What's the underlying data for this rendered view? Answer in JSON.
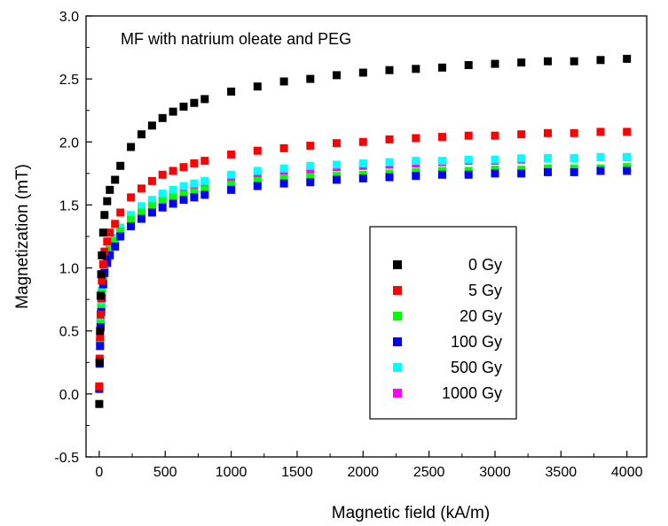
{
  "chart_data": {
    "type": "scatter",
    "title": "MF with natrium oleate and PEG",
    "xlabel": "Magnetic field (kA/m)",
    "ylabel": "Magnetization (mT)",
    "xlim": [
      -100,
      4150
    ],
    "ylim": [
      -0.5,
      3.0
    ],
    "x_ticks": [
      0,
      500,
      1000,
      1500,
      2000,
      2500,
      3000,
      3500,
      4000
    ],
    "y_ticks": [
      -0.5,
      0.0,
      0.5,
      1.0,
      1.5,
      2.0,
      2.5,
      3.0
    ],
    "x_tick_labels": [
      "0",
      "500",
      "1000",
      "1500",
      "2000",
      "2500",
      "3000",
      "3500",
      "4000"
    ],
    "y_tick_labels": [
      "-0.5",
      "0.0",
      "0.5",
      "1.0",
      "1.5",
      "2.0",
      "2.5",
      "3.0"
    ],
    "grid": false,
    "legend_position": "center-right",
    "x": [
      0,
      3,
      6,
      10,
      15,
      20,
      30,
      40,
      60,
      80,
      120,
      160,
      240,
      320,
      400,
      480,
      560,
      640,
      720,
      800,
      1000,
      1200,
      1400,
      1600,
      1800,
      2000,
      2200,
      2400,
      2600,
      2800,
      3000,
      3200,
      3400,
      3600,
      3800,
      4000
    ],
    "series": [
      {
        "name": "0 Gy",
        "color": "#000000",
        "values": [
          -0.08,
          0.25,
          0.5,
          0.78,
          0.95,
          1.1,
          1.28,
          1.42,
          1.53,
          1.62,
          1.7,
          1.81,
          1.96,
          2.06,
          2.13,
          2.19,
          2.24,
          2.28,
          2.31,
          2.34,
          2.4,
          2.44,
          2.48,
          2.5,
          2.53,
          2.55,
          2.57,
          2.58,
          2.59,
          2.61,
          2.62,
          2.63,
          2.64,
          2.64,
          2.65,
          2.66
        ]
      },
      {
        "name": "5 Gy",
        "color": "#ff0000",
        "values": [
          0.06,
          0.28,
          0.45,
          0.63,
          0.76,
          0.9,
          1.03,
          1.13,
          1.21,
          1.28,
          1.35,
          1.44,
          1.56,
          1.63,
          1.69,
          1.74,
          1.77,
          1.8,
          1.83,
          1.85,
          1.9,
          1.93,
          1.95,
          1.97,
          1.99,
          2.0,
          2.02,
          2.03,
          2.04,
          2.05,
          2.05,
          2.06,
          2.07,
          2.07,
          2.08,
          2.08
        ]
      },
      {
        "name": "20 Gy",
        "color": "#00ff00",
        "values": [
          0.05,
          0.26,
          0.4,
          0.56,
          0.68,
          0.8,
          0.92,
          1.01,
          1.08,
          1.14,
          1.21,
          1.29,
          1.38,
          1.44,
          1.49,
          1.53,
          1.56,
          1.58,
          1.6,
          1.62,
          1.66,
          1.69,
          1.71,
          1.72,
          1.73,
          1.74,
          1.75,
          1.76,
          1.77,
          1.77,
          1.78,
          1.78,
          1.79,
          1.79,
          1.79,
          1.8
        ]
      },
      {
        "name": "100 Gy",
        "color": "#0000ff",
        "values": [
          0.04,
          0.24,
          0.38,
          0.53,
          0.65,
          0.76,
          0.87,
          0.96,
          1.04,
          1.1,
          1.17,
          1.25,
          1.33,
          1.39,
          1.44,
          1.48,
          1.51,
          1.54,
          1.56,
          1.58,
          1.62,
          1.65,
          1.67,
          1.68,
          1.7,
          1.71,
          1.72,
          1.73,
          1.74,
          1.74,
          1.75,
          1.75,
          1.76,
          1.76,
          1.77,
          1.77
        ]
      },
      {
        "name": "500 Gy",
        "color": "#00ffff",
        "values": [
          0.05,
          0.27,
          0.42,
          0.58,
          0.7,
          0.82,
          0.94,
          1.03,
          1.11,
          1.17,
          1.24,
          1.32,
          1.42,
          1.49,
          1.54,
          1.59,
          1.62,
          1.65,
          1.67,
          1.69,
          1.74,
          1.77,
          1.79,
          1.81,
          1.82,
          1.83,
          1.84,
          1.85,
          1.85,
          1.86,
          1.86,
          1.87,
          1.87,
          1.87,
          1.88,
          1.88
        ]
      },
      {
        "name": "1000 Gy",
        "color": "#ff00ff",
        "values": [
          0.05,
          0.26,
          0.41,
          0.57,
          0.69,
          0.81,
          0.93,
          1.02,
          1.09,
          1.16,
          1.22,
          1.3,
          1.4,
          1.46,
          1.52,
          1.56,
          1.59,
          1.62,
          1.65,
          1.67,
          1.71,
          1.74,
          1.76,
          1.78,
          1.8,
          1.81,
          1.82,
          1.83,
          1.84,
          1.85,
          1.85,
          1.86,
          1.87,
          1.87,
          1.88,
          1.88
        ]
      }
    ]
  }
}
